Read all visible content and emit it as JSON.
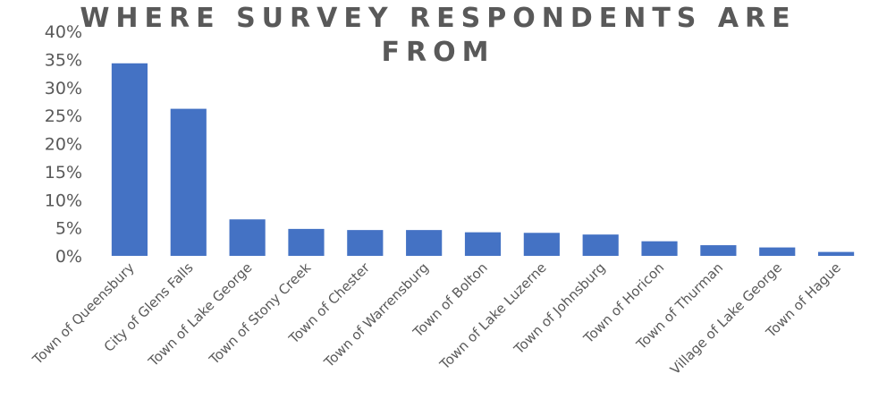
{
  "chart_data": {
    "type": "bar",
    "title": "WHERE SURVEY RESPONDENTS ARE FROM",
    "title_lines": [
      "WHERE SURVEY RESPONDENTS ARE",
      "FROM"
    ],
    "xlabel": "",
    "ylabel": "",
    "ylim": [
      0,
      40
    ],
    "yticks": [
      "0%",
      "5%",
      "10%",
      "15%",
      "20%",
      "25%",
      "30%",
      "35%",
      "40%"
    ],
    "grid": false,
    "legend": "none",
    "bar_color": "#4472C4",
    "categories": [
      "Town of Queensbury",
      "City of Glens Falls",
      "Town of Lake George",
      "Town of Stony Creek",
      "Town of Chester",
      "Town of Warrensburg",
      "Town of Bolton",
      "Town of Lake Luzerne",
      "Town of Johnsburg",
      "Town of Horicon",
      "Town of Thurman",
      "Village of Lake George",
      "Town of Hague"
    ],
    "values": [
      34.3,
      26.2,
      6.5,
      4.8,
      4.6,
      4.6,
      4.2,
      4.1,
      3.8,
      2.6,
      1.9,
      1.5,
      0.7
    ]
  }
}
